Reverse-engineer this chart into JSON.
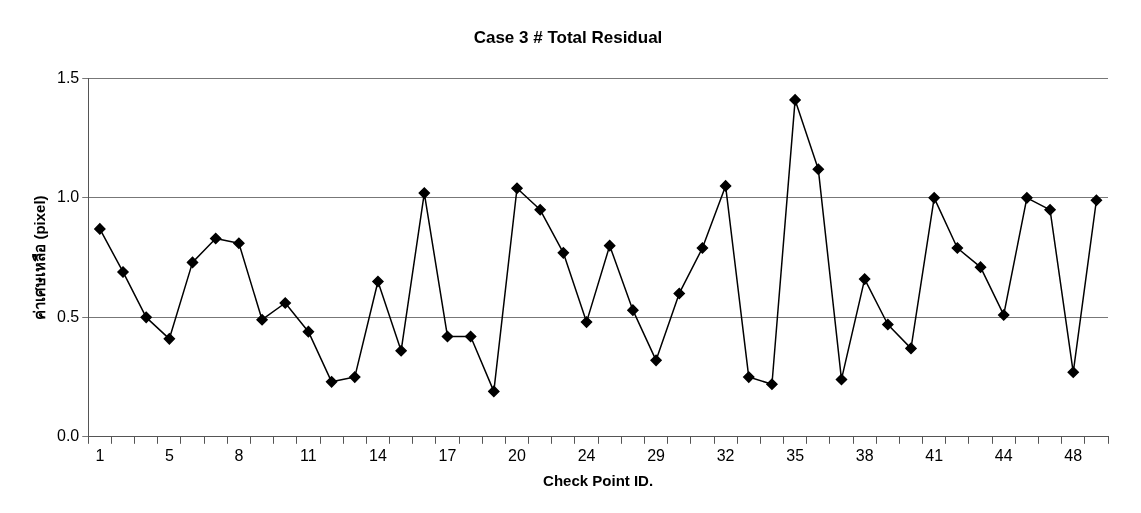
{
  "chart_data": {
    "type": "line",
    "title": "Case 3 # Total Residual",
    "xlabel": "Check Point ID.",
    "ylabel": "ค่าเศษเหลือ (pixel)",
    "categories": [
      "1",
      null,
      null,
      "5",
      null,
      null,
      "8",
      null,
      null,
      "11",
      null,
      null,
      "14",
      null,
      null,
      "17",
      null,
      null,
      "20",
      null,
      null,
      "24",
      null,
      null,
      "29",
      null,
      null,
      "32",
      null,
      null,
      "35",
      null,
      null,
      "38",
      null,
      null,
      "41",
      null,
      null,
      "44",
      null,
      null,
      "48",
      null
    ],
    "series": [
      {
        "color": "#000000",
        "values": [
          0.87,
          0.69,
          0.5,
          0.41,
          0.73,
          0.83,
          0.81,
          0.49,
          0.56,
          0.44,
          0.23,
          0.25,
          0.65,
          0.36,
          1.02,
          0.42,
          0.42,
          0.19,
          1.04,
          0.95,
          0.77,
          0.48,
          0.8,
          0.53,
          0.32,
          0.6,
          0.79,
          1.05,
          0.25,
          0.22,
          1.41,
          1.12,
          0.24,
          0.66,
          0.47,
          0.37,
          1.0,
          0.79,
          0.71,
          0.51,
          1.0,
          0.95,
          0.27,
          0.99
        ]
      }
    ],
    "ylim": [
      0,
      1.5
    ],
    "yticks": [
      {
        "value": 0,
        "label": "0.0"
      },
      {
        "value": 0.5,
        "label": "0.5"
      },
      {
        "value": 1,
        "label": "1.0"
      },
      {
        "value": 1.5,
        "label": "1.5"
      }
    ],
    "grid": "y",
    "legend": false,
    "marker": "diamond",
    "line_style": "solid"
  }
}
